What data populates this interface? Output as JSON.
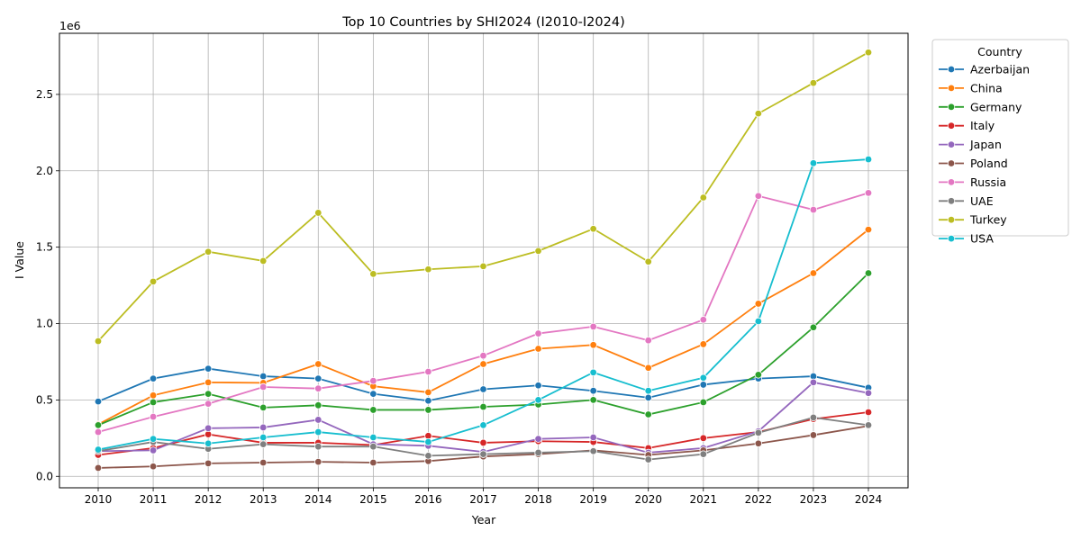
{
  "chart_data": {
    "type": "line",
    "title": "Top 10 Countries by SHI2024 (I2010-I2024)",
    "xlabel": "Year",
    "ylabel": "I Value",
    "offset_label": "1e6",
    "ylim": [
      -75000,
      2900000
    ],
    "yticks": [
      0,
      500000,
      1000000,
      1500000,
      2000000,
      2500000
    ],
    "ytick_labels": [
      "0.0",
      "0.5",
      "1.0",
      "1.5",
      "2.0",
      "2.5"
    ],
    "grid": true,
    "legend_title": "Country",
    "legend_position": "outside-right",
    "categories": [
      "2010",
      "2011",
      "2012",
      "2013",
      "2014",
      "2015",
      "2016",
      "2017",
      "2018",
      "2019",
      "2020",
      "2021",
      "2022",
      "2023",
      "2024"
    ],
    "series": [
      {
        "name": "Azerbaijan",
        "color": "#1f77b4",
        "values": [
          490000,
          640000,
          705000,
          655000,
          640000,
          540000,
          495000,
          570000,
          595000,
          560000,
          515000,
          600000,
          640000,
          655000,
          580000
        ]
      },
      {
        "name": "China",
        "color": "#ff7f0e",
        "values": [
          340000,
          530000,
          615000,
          612000,
          735000,
          590000,
          550000,
          735000,
          835000,
          860000,
          710000,
          865000,
          1130000,
          1330000,
          1615000
        ]
      },
      {
        "name": "Germany",
        "color": "#2ca02c",
        "values": [
          335000,
          485000,
          540000,
          450000,
          465000,
          435000,
          435000,
          455000,
          470000,
          500000,
          405000,
          485000,
          665000,
          975000,
          1330000
        ]
      },
      {
        "name": "Italy",
        "color": "#d62728",
        "values": [
          140000,
          185000,
          275000,
          220000,
          220000,
          205000,
          265000,
          220000,
          230000,
          225000,
          185000,
          250000,
          290000,
          375000,
          420000
        ]
      },
      {
        "name": "Japan",
        "color": "#9467bd",
        "values": [
          165000,
          170000,
          315000,
          320000,
          370000,
          210000,
          200000,
          160000,
          245000,
          255000,
          155000,
          185000,
          295000,
          615000,
          545000
        ]
      },
      {
        "name": "Poland",
        "color": "#8c564b",
        "values": [
          55000,
          65000,
          85000,
          90000,
          95000,
          90000,
          100000,
          130000,
          145000,
          170000,
          140000,
          170000,
          215000,
          270000,
          330000
        ]
      },
      {
        "name": "Russia",
        "color": "#e377c2",
        "values": [
          290000,
          390000,
          475000,
          585000,
          575000,
          625000,
          685000,
          790000,
          935000,
          980000,
          890000,
          1025000,
          1835000,
          1745000,
          1855000
        ]
      },
      {
        "name": "UAE",
        "color": "#7f7f7f",
        "values": [
          165000,
          225000,
          180000,
          210000,
          195000,
          195000,
          135000,
          145000,
          155000,
          165000,
          110000,
          145000,
          285000,
          385000,
          335000
        ]
      },
      {
        "name": "Turkey",
        "color": "#bcbd22",
        "values": [
          885000,
          1275000,
          1470000,
          1410000,
          1725000,
          1325000,
          1355000,
          1375000,
          1475000,
          1620000,
          1405000,
          1825000,
          2375000,
          2575000,
          2775000
        ]
      },
      {
        "name": "USA",
        "color": "#17becf",
        "values": [
          175000,
          245000,
          215000,
          255000,
          290000,
          255000,
          225000,
          335000,
          500000,
          680000,
          560000,
          645000,
          1015000,
          2050000,
          2075000
        ]
      }
    ]
  }
}
